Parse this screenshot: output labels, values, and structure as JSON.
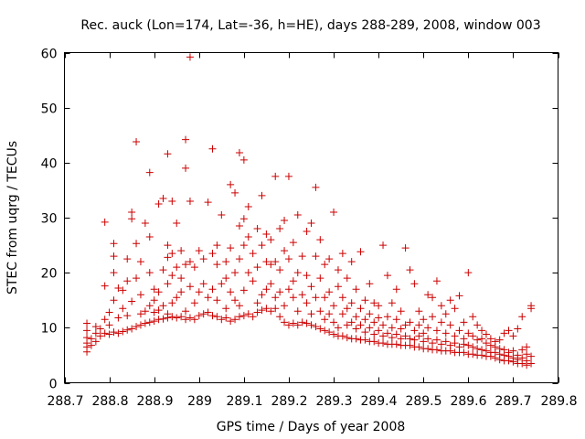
{
  "chart_data": {
    "type": "scatter",
    "title": "Rec. auck (Lon=174, Lat=-36, h=HE), days 288-289, 2008, window 003",
    "xlabel": "GPS time / Days of year 2008",
    "ylabel": "STEC from uqrg / TECUs",
    "xlim": [
      288.7,
      289.8
    ],
    "ylim": [
      0,
      60
    ],
    "xticks": [
      "288.7",
      "288.8",
      "288.9",
      "289",
      "289.1",
      "289.2",
      "289.3",
      "289.4",
      "289.5",
      "289.6",
      "289.7",
      "289.8"
    ],
    "yticks": [
      "0",
      "10",
      "20",
      "30",
      "40",
      "50",
      "60"
    ],
    "marker": "plus",
    "color": "#cc0000",
    "grid": false,
    "points": [
      [
        288.75,
        5.6
      ],
      [
        288.75,
        6.5
      ],
      [
        288.75,
        7.2
      ],
      [
        288.75,
        8.2
      ],
      [
        288.75,
        9.5
      ],
      [
        288.75,
        10.8
      ],
      [
        288.76,
        6.8
      ],
      [
        288.76,
        8.0
      ],
      [
        288.77,
        7.5
      ],
      [
        288.77,
        9.0
      ],
      [
        288.77,
        10.2
      ],
      [
        288.78,
        8.5
      ],
      [
        288.78,
        9.8
      ],
      [
        288.79,
        9.0
      ],
      [
        288.79,
        11.5
      ],
      [
        288.79,
        29.2
      ],
      [
        288.79,
        17.6
      ],
      [
        288.8,
        8.8
      ],
      [
        288.8,
        10.5
      ],
      [
        288.8,
        12.8
      ],
      [
        288.81,
        9.2
      ],
      [
        288.81,
        20.0
      ],
      [
        288.81,
        23.0
      ],
      [
        288.81,
        25.3
      ],
      [
        288.81,
        15.0
      ],
      [
        288.82,
        9.0
      ],
      [
        288.82,
        11.8
      ],
      [
        288.82,
        17.2
      ],
      [
        288.83,
        9.3
      ],
      [
        288.83,
        13.5
      ],
      [
        288.83,
        16.8
      ],
      [
        288.84,
        9.6
      ],
      [
        288.84,
        12.2
      ],
      [
        288.84,
        18.5
      ],
      [
        288.84,
        22.5
      ],
      [
        288.85,
        9.8
      ],
      [
        288.85,
        14.8
      ],
      [
        288.85,
        29.8
      ],
      [
        288.85,
        31.0
      ],
      [
        288.86,
        10.2
      ],
      [
        288.86,
        19.0
      ],
      [
        288.86,
        25.3
      ],
      [
        288.86,
        43.8
      ],
      [
        288.87,
        10.5
      ],
      [
        288.87,
        12.5
      ],
      [
        288.87,
        16.0
      ],
      [
        288.87,
        22.0
      ],
      [
        288.88,
        10.8
      ],
      [
        288.88,
        13.0
      ],
      [
        288.88,
        29.0
      ],
      [
        288.89,
        11.0
      ],
      [
        288.89,
        14.0
      ],
      [
        288.89,
        20.0
      ],
      [
        288.89,
        26.5
      ],
      [
        288.89,
        38.2
      ],
      [
        288.9,
        11.2
      ],
      [
        288.9,
        12.8
      ],
      [
        288.9,
        15.0
      ],
      [
        288.9,
        17.0
      ],
      [
        288.91,
        11.5
      ],
      [
        288.91,
        13.2
      ],
      [
        288.91,
        16.5
      ],
      [
        288.91,
        32.5
      ],
      [
        288.92,
        11.6
      ],
      [
        288.92,
        14.0
      ],
      [
        288.92,
        20.5
      ],
      [
        288.92,
        33.5
      ],
      [
        288.93,
        11.8
      ],
      [
        288.93,
        12.5
      ],
      [
        288.93,
        18.0
      ],
      [
        288.93,
        22.8
      ],
      [
        288.93,
        25.0
      ],
      [
        288.93,
        41.6
      ],
      [
        288.94,
        12.0
      ],
      [
        288.94,
        14.5
      ],
      [
        288.94,
        19.5
      ],
      [
        288.94,
        23.5
      ],
      [
        288.94,
        33.0
      ],
      [
        288.95,
        11.8
      ],
      [
        288.95,
        15.5
      ],
      [
        288.95,
        21.0
      ],
      [
        288.95,
        29.0
      ],
      [
        288.96,
        12.0
      ],
      [
        288.96,
        16.5
      ],
      [
        288.96,
        19.0
      ],
      [
        288.96,
        24.0
      ],
      [
        288.97,
        11.5
      ],
      [
        288.97,
        13.0
      ],
      [
        288.97,
        21.5
      ],
      [
        288.97,
        39.0
      ],
      [
        288.97,
        44.2
      ],
      [
        288.98,
        11.8
      ],
      [
        288.98,
        17.5
      ],
      [
        288.98,
        22.0
      ],
      [
        288.98,
        33.0
      ],
      [
        288.99,
        11.5
      ],
      [
        288.99,
        14.5
      ],
      [
        288.99,
        21.0
      ],
      [
        288.98,
        59.2
      ],
      [
        289.0,
        12.2
      ],
      [
        289.0,
        16.5
      ],
      [
        289.0,
        24.0
      ],
      [
        289.01,
        12.5
      ],
      [
        289.01,
        18.0
      ],
      [
        289.01,
        22.5
      ],
      [
        289.02,
        12.8
      ],
      [
        289.02,
        15.5
      ],
      [
        289.02,
        32.8
      ],
      [
        289.03,
        12.2
      ],
      [
        289.03,
        17.0
      ],
      [
        289.03,
        23.5
      ],
      [
        289.03,
        42.5
      ],
      [
        289.04,
        12.0
      ],
      [
        289.04,
        15.0
      ],
      [
        289.04,
        21.5
      ],
      [
        289.04,
        25.0
      ],
      [
        289.05,
        11.5
      ],
      [
        289.05,
        18.0
      ],
      [
        289.05,
        30.5
      ],
      [
        289.06,
        11.8
      ],
      [
        289.06,
        13.5
      ],
      [
        289.06,
        19.0
      ],
      [
        289.06,
        22.0
      ],
      [
        289.07,
        11.2
      ],
      [
        289.07,
        16.5
      ],
      [
        289.07,
        24.5
      ],
      [
        289.07,
        36.0
      ],
      [
        289.08,
        11.5
      ],
      [
        289.08,
        15.0
      ],
      [
        289.08,
        20.0
      ],
      [
        289.08,
        34.5
      ],
      [
        289.09,
        12.0
      ],
      [
        289.09,
        14.0
      ],
      [
        289.09,
        22.5
      ],
      [
        289.09,
        28.5
      ],
      [
        289.09,
        41.8
      ],
      [
        289.1,
        12.2
      ],
      [
        289.1,
        16.8
      ],
      [
        289.1,
        25.0
      ],
      [
        289.1,
        29.8
      ],
      [
        289.1,
        40.5
      ],
      [
        289.11,
        12.5
      ],
      [
        289.11,
        20.0
      ],
      [
        289.11,
        26.5
      ],
      [
        289.11,
        32.0
      ],
      [
        289.12,
        12.0
      ],
      [
        289.12,
        18.5
      ],
      [
        289.12,
        23.5
      ],
      [
        289.13,
        12.8
      ],
      [
        289.13,
        14.5
      ],
      [
        289.13,
        21.0
      ],
      [
        289.13,
        28.0
      ],
      [
        289.14,
        13.2
      ],
      [
        289.14,
        16.0
      ],
      [
        289.14,
        25.0
      ],
      [
        289.14,
        34.0
      ],
      [
        289.15,
        13.5
      ],
      [
        289.15,
        17.0
      ],
      [
        289.15,
        22.0
      ],
      [
        289.15,
        27.0
      ],
      [
        289.16,
        13.0
      ],
      [
        289.16,
        18.0
      ],
      [
        289.16,
        21.5
      ],
      [
        289.16,
        26.0
      ],
      [
        289.17,
        13.5
      ],
      [
        289.17,
        15.5
      ],
      [
        289.17,
        22.0
      ],
      [
        289.17,
        37.5
      ],
      [
        289.18,
        12.0
      ],
      [
        289.18,
        16.5
      ],
      [
        289.18,
        20.5
      ],
      [
        289.18,
        28.0
      ],
      [
        289.19,
        11.0
      ],
      [
        289.19,
        14.0
      ],
      [
        289.19,
        24.0
      ],
      [
        289.19,
        29.5
      ],
      [
        289.2,
        10.5
      ],
      [
        289.2,
        17.0
      ],
      [
        289.2,
        22.5
      ],
      [
        289.2,
        37.5
      ],
      [
        289.21,
        10.8
      ],
      [
        289.21,
        15.5
      ],
      [
        289.21,
        18.5
      ],
      [
        289.21,
        25.5
      ],
      [
        289.22,
        10.5
      ],
      [
        289.22,
        13.0
      ],
      [
        289.22,
        20.0
      ],
      [
        289.22,
        30.5
      ],
      [
        289.23,
        11.0
      ],
      [
        289.23,
        16.0
      ],
      [
        289.23,
        23.0
      ],
      [
        289.24,
        10.8
      ],
      [
        289.24,
        14.5
      ],
      [
        289.24,
        19.5
      ],
      [
        289.24,
        27.5
      ],
      [
        289.25,
        10.5
      ],
      [
        289.25,
        12.5
      ],
      [
        289.25,
        17.5
      ],
      [
        289.25,
        29.0
      ],
      [
        289.26,
        10.2
      ],
      [
        289.26,
        15.5
      ],
      [
        289.26,
        23.0
      ],
      [
        289.26,
        35.5
      ],
      [
        289.27,
        9.8
      ],
      [
        289.27,
        13.0
      ],
      [
        289.27,
        19.0
      ],
      [
        289.27,
        26.0
      ],
      [
        289.28,
        9.5
      ],
      [
        289.28,
        11.5
      ],
      [
        289.28,
        15.5
      ],
      [
        289.28,
        21.5
      ],
      [
        289.29,
        9.2
      ],
      [
        289.29,
        12.5
      ],
      [
        289.29,
        16.5
      ],
      [
        289.29,
        22.5
      ],
      [
        289.3,
        8.8
      ],
      [
        289.3,
        11.0
      ],
      [
        289.3,
        14.0
      ],
      [
        289.3,
        31.0
      ],
      [
        289.31,
        8.5
      ],
      [
        289.31,
        10.0
      ],
      [
        289.31,
        17.5
      ],
      [
        289.31,
        20.5
      ],
      [
        289.32,
        8.5
      ],
      [
        289.32,
        12.5
      ],
      [
        289.32,
        15.5
      ],
      [
        289.32,
        23.5
      ],
      [
        289.33,
        8.2
      ],
      [
        289.33,
        10.5
      ],
      [
        289.33,
        13.5
      ],
      [
        289.33,
        19.0
      ],
      [
        289.34,
        8.0
      ],
      [
        289.34,
        11.0
      ],
      [
        289.34,
        14.5
      ],
      [
        289.34,
        22.0
      ],
      [
        289.35,
        8.0
      ],
      [
        289.35,
        9.8
      ],
      [
        289.35,
        12.0
      ],
      [
        289.35,
        17.0
      ],
      [
        289.36,
        7.8
      ],
      [
        289.36,
        10.5
      ],
      [
        289.36,
        13.5
      ],
      [
        289.36,
        23.8
      ],
      [
        289.37,
        7.8
      ],
      [
        289.37,
        9.2
      ],
      [
        289.37,
        11.5
      ],
      [
        289.37,
        15.0
      ],
      [
        289.38,
        7.5
      ],
      [
        289.38,
        10.0
      ],
      [
        289.38,
        12.5
      ],
      [
        289.38,
        18.0
      ],
      [
        289.39,
        7.5
      ],
      [
        289.39,
        8.8
      ],
      [
        289.39,
        11.0
      ],
      [
        289.39,
        14.5
      ],
      [
        289.4,
        7.2
      ],
      [
        289.4,
        9.5
      ],
      [
        289.4,
        11.8
      ],
      [
        289.4,
        14.0
      ],
      [
        289.41,
        7.2
      ],
      [
        289.41,
        8.5
      ],
      [
        289.41,
        10.5
      ],
      [
        289.41,
        25.0
      ],
      [
        289.42,
        7.0
      ],
      [
        289.42,
        9.0
      ],
      [
        289.42,
        12.0
      ],
      [
        289.42,
        19.5
      ],
      [
        289.43,
        7.0
      ],
      [
        289.43,
        8.2
      ],
      [
        289.43,
        10.0
      ],
      [
        289.43,
        14.5
      ],
      [
        289.44,
        7.0
      ],
      [
        289.44,
        8.8
      ],
      [
        289.44,
        11.5
      ],
      [
        289.44,
        17.0
      ],
      [
        289.45,
        6.8
      ],
      [
        289.45,
        8.0
      ],
      [
        289.45,
        9.8
      ],
      [
        289.45,
        13.0
      ],
      [
        289.46,
        6.8
      ],
      [
        289.46,
        8.5
      ],
      [
        289.46,
        10.5
      ],
      [
        289.46,
        24.5
      ],
      [
        289.47,
        6.8
      ],
      [
        289.47,
        8.0
      ],
      [
        289.47,
        11.0
      ],
      [
        289.47,
        20.5
      ],
      [
        289.48,
        6.5
      ],
      [
        289.48,
        7.8
      ],
      [
        289.48,
        9.5
      ],
      [
        289.48,
        18.0
      ],
      [
        289.49,
        6.5
      ],
      [
        289.49,
        8.5
      ],
      [
        289.49,
        10.5
      ],
      [
        289.49,
        13.0
      ],
      [
        289.5,
        6.2
      ],
      [
        289.5,
        7.5
      ],
      [
        289.5,
        9.0
      ],
      [
        289.5,
        11.5
      ],
      [
        289.51,
        6.2
      ],
      [
        289.51,
        8.0
      ],
      [
        289.51,
        10.0
      ],
      [
        289.51,
        16.0
      ],
      [
        289.52,
        6.0
      ],
      [
        289.52,
        7.2
      ],
      [
        289.52,
        12.0
      ],
      [
        289.52,
        15.5
      ],
      [
        289.53,
        6.0
      ],
      [
        289.53,
        7.8
      ],
      [
        289.53,
        9.5
      ],
      [
        289.53,
        18.5
      ],
      [
        289.54,
        5.8
      ],
      [
        289.54,
        7.0
      ],
      [
        289.54,
        11.0
      ],
      [
        289.54,
        14.0
      ],
      [
        289.55,
        5.8
      ],
      [
        289.55,
        7.5
      ],
      [
        289.55,
        9.0
      ],
      [
        289.55,
        12.5
      ],
      [
        289.56,
        5.8
      ],
      [
        289.56,
        6.8
      ],
      [
        289.56,
        10.5
      ],
      [
        289.56,
        15.0
      ],
      [
        289.57,
        5.5
      ],
      [
        289.57,
        7.2
      ],
      [
        289.57,
        8.5
      ],
      [
        289.57,
        13.5
      ],
      [
        289.58,
        5.5
      ],
      [
        289.58,
        6.5
      ],
      [
        289.58,
        9.5
      ],
      [
        289.58,
        15.8
      ],
      [
        289.59,
        5.5
      ],
      [
        289.59,
        7.0
      ],
      [
        289.59,
        8.0
      ],
      [
        289.59,
        11.0
      ],
      [
        289.6,
        5.2
      ],
      [
        289.6,
        6.8
      ],
      [
        289.6,
        9.0
      ],
      [
        289.6,
        20.0
      ],
      [
        289.61,
        5.2
      ],
      [
        289.61,
        6.5
      ],
      [
        289.61,
        8.5
      ],
      [
        289.61,
        12.0
      ],
      [
        289.62,
        5.0
      ],
      [
        289.62,
        6.2
      ],
      [
        289.62,
        7.8
      ],
      [
        289.62,
        10.5
      ],
      [
        289.63,
        5.0
      ],
      [
        289.63,
        6.0
      ],
      [
        289.63,
        8.0
      ],
      [
        289.63,
        9.5
      ],
      [
        289.64,
        4.8
      ],
      [
        289.64,
        5.8
      ],
      [
        289.64,
        7.2
      ],
      [
        289.64,
        8.8
      ],
      [
        289.65,
        4.8
      ],
      [
        289.65,
        5.5
      ],
      [
        289.65,
        6.8
      ],
      [
        289.65,
        8.0
      ],
      [
        289.66,
        4.5
      ],
      [
        289.66,
        5.5
      ],
      [
        289.66,
        6.5
      ],
      [
        289.66,
        7.5
      ],
      [
        289.67,
        4.2
      ],
      [
        289.67,
        5.2
      ],
      [
        289.67,
        6.2
      ],
      [
        289.67,
        7.8
      ],
      [
        289.68,
        4.0
      ],
      [
        289.68,
        5.0
      ],
      [
        289.68,
        6.0
      ],
      [
        289.68,
        9.0
      ],
      [
        289.69,
        4.0
      ],
      [
        289.69,
        4.8
      ],
      [
        289.69,
        5.5
      ],
      [
        289.69,
        9.5
      ],
      [
        289.7,
        3.8
      ],
      [
        289.7,
        4.5
      ],
      [
        289.7,
        5.8
      ],
      [
        289.7,
        8.5
      ],
      [
        289.71,
        3.5
      ],
      [
        289.71,
        4.2
      ],
      [
        289.71,
        5.0
      ],
      [
        289.71,
        9.8
      ],
      [
        289.72,
        3.5
      ],
      [
        289.72,
        4.5
      ],
      [
        289.72,
        6.0
      ],
      [
        289.72,
        12.0
      ],
      [
        289.73,
        3.2
      ],
      [
        289.73,
        4.0
      ],
      [
        289.73,
        5.2
      ],
      [
        289.73,
        6.5
      ],
      [
        289.74,
        3.5
      ],
      [
        289.74,
        4.8
      ],
      [
        289.74,
        13.5
      ],
      [
        289.74,
        14.0
      ]
    ]
  }
}
